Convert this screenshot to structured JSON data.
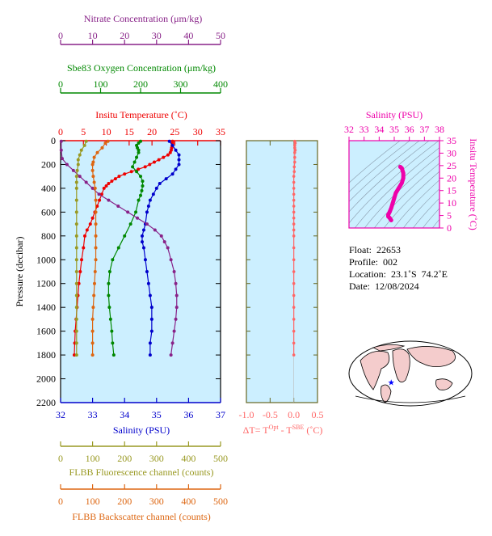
{
  "chart_data": [
    {
      "type": "line",
      "panel": "main-profile",
      "ylabel": "Pressure (decibar)",
      "y_ticks": [
        0,
        200,
        400,
        600,
        800,
        1000,
        1200,
        1400,
        1600,
        1800,
        2000,
        2200
      ],
      "ylim": [
        2200,
        0
      ],
      "y_inverted": true,
      "background_color": "#ccefff",
      "axes": {
        "nitrate": {
          "label": "Nitrate Concentration (μm/kg)",
          "ticks": [
            0,
            10,
            20,
            30,
            40,
            50
          ],
          "range": [
            0,
            50
          ],
          "color": "#882288"
        },
        "oxygen": {
          "label": "Sbe83 Oxygen Concentration (μm/kg)",
          "ticks": [
            0,
            100,
            200,
            300,
            400
          ],
          "range": [
            0,
            400
          ],
          "color": "#008800"
        },
        "temperature": {
          "label": "Insitu Temperature (˚C)",
          "ticks": [
            0,
            5,
            10,
            15,
            20,
            25,
            30,
            35
          ],
          "range": [
            0,
            35
          ],
          "color": "#ee0000"
        },
        "salinity": {
          "label": "Salinity (PSU)",
          "ticks": [
            32,
            33,
            34,
            35,
            36,
            37
          ],
          "range": [
            32,
            37
          ],
          "color": "#0000cc"
        },
        "fluorescence": {
          "label": "FLBB Fluorescence channel (counts)",
          "ticks": [
            0,
            100,
            200,
            300,
            400,
            500
          ],
          "range": [
            0,
            500
          ],
          "color": "#999922"
        },
        "backscatter": {
          "label": "FLBB Backscatter channel (counts)",
          "ticks": [
            0,
            100,
            200,
            300,
            400,
            500
          ],
          "range": [
            0,
            500
          ],
          "color": "#dd6611"
        }
      },
      "series": [
        {
          "key": "temperature",
          "color": "#ee0000",
          "points": [
            [
              24.5,
              5
            ],
            [
              24.5,
              20
            ],
            [
              24.4,
              40
            ],
            [
              24.3,
              60
            ],
            [
              24.2,
              80
            ],
            [
              24.0,
              100
            ],
            [
              23.5,
              120
            ],
            [
              22.5,
              140
            ],
            [
              21.5,
              160
            ],
            [
              20.5,
              180
            ],
            [
              19.5,
              200
            ],
            [
              18.5,
              220
            ],
            [
              17.0,
              240
            ],
            [
              15.5,
              260
            ],
            [
              14.0,
              280
            ],
            [
              12.8,
              300
            ],
            [
              12.0,
              320
            ],
            [
              11.2,
              340
            ],
            [
              10.5,
              360
            ],
            [
              10.0,
              380
            ],
            [
              9.5,
              400
            ],
            [
              9.0,
              450
            ],
            [
              8.5,
              500
            ],
            [
              8.0,
              550
            ],
            [
              7.5,
              600
            ],
            [
              7.0,
              650
            ],
            [
              6.5,
              700
            ],
            [
              5.8,
              750
            ],
            [
              5.3,
              800
            ],
            [
              5.0,
              900
            ],
            [
              4.6,
              1000
            ],
            [
              4.3,
              1100
            ],
            [
              4.0,
              1200
            ],
            [
              3.8,
              1300
            ],
            [
              3.6,
              1400
            ],
            [
              3.4,
              1500
            ],
            [
              3.2,
              1600
            ],
            [
              3.1,
              1700
            ],
            [
              3.0,
              1800
            ]
          ]
        },
        {
          "key": "salinity",
          "color": "#0000cc",
          "points": [
            [
              35.4,
              5
            ],
            [
              35.5,
              40
            ],
            [
              35.6,
              80
            ],
            [
              35.7,
              120
            ],
            [
              35.7,
              160
            ],
            [
              35.7,
              200
            ],
            [
              35.6,
              240
            ],
            [
              35.5,
              280
            ],
            [
              35.3,
              320
            ],
            [
              35.1,
              360
            ],
            [
              35.0,
              400
            ],
            [
              34.9,
              450
            ],
            [
              34.8,
              500
            ],
            [
              34.75,
              550
            ],
            [
              34.7,
              600
            ],
            [
              34.65,
              700
            ],
            [
              34.6,
              750
            ],
            [
              34.55,
              800
            ],
            [
              34.55,
              850
            ],
            [
              34.6,
              900
            ],
            [
              34.65,
              1000
            ],
            [
              34.7,
              1100
            ],
            [
              34.75,
              1200
            ],
            [
              34.8,
              1300
            ],
            [
              34.85,
              1400
            ],
            [
              34.85,
              1500
            ],
            [
              34.85,
              1600
            ],
            [
              34.8,
              1700
            ],
            [
              34.8,
              1800
            ]
          ]
        },
        {
          "key": "oxygen",
          "color": "#008800",
          "points": [
            [
              200,
              5
            ],
            [
              195,
              20
            ],
            [
              190,
              40
            ],
            [
              192,
              60
            ],
            [
              195,
              80
            ],
            [
              195,
              100
            ],
            [
              190,
              140
            ],
            [
              185,
              180
            ],
            [
              180,
              220
            ],
            [
              190,
              260
            ],
            [
              200,
              300
            ],
            [
              205,
              340
            ],
            [
              205,
              380
            ],
            [
              203,
              420
            ],
            [
              200,
              460
            ],
            [
              195,
              500
            ],
            [
              188,
              600
            ],
            [
              175,
              700
            ],
            [
              160,
              800
            ],
            [
              145,
              900
            ],
            [
              130,
              1000
            ],
            [
              123,
              1100
            ],
            [
              120,
              1200
            ],
            [
              120,
              1300
            ],
            [
              122,
              1400
            ],
            [
              125,
              1500
            ],
            [
              128,
              1600
            ],
            [
              130,
              1700
            ],
            [
              133,
              1800
            ]
          ]
        },
        {
          "key": "nitrate",
          "color": "#882288",
          "points": [
            [
              0.2,
              5
            ],
            [
              0.2,
              80
            ],
            [
              0.5,
              150
            ],
            [
              2,
              200
            ],
            [
              4,
              250
            ],
            [
              6,
              300
            ],
            [
              8,
              350
            ],
            [
              10,
              400
            ],
            [
              12,
              450
            ],
            [
              15,
              500
            ],
            [
              18,
              550
            ],
            [
              21,
              600
            ],
            [
              24,
              650
            ],
            [
              27,
              700
            ],
            [
              29.5,
              750
            ],
            [
              31.5,
              800
            ],
            [
              32.5,
              850
            ],
            [
              33.5,
              900
            ],
            [
              34.5,
              1000
            ],
            [
              35.5,
              1100
            ],
            [
              36,
              1200
            ],
            [
              36.3,
              1300
            ],
            [
              36.3,
              1400
            ],
            [
              36,
              1500
            ],
            [
              35.5,
              1600
            ],
            [
              35,
              1700
            ],
            [
              34.5,
              1800
            ]
          ]
        },
        {
          "key": "fluorescence",
          "color": "#999922",
          "points": [
            [
              80,
              5
            ],
            [
              75,
              40
            ],
            [
              65,
              80
            ],
            [
              60,
              120
            ],
            [
              55,
              160
            ],
            [
              55,
              200
            ],
            [
              52,
              250
            ],
            [
              50,
              300
            ],
            [
              50,
              350
            ],
            [
              50,
              400
            ],
            [
              50,
              500
            ],
            [
              50,
              600
            ],
            [
              50,
              700
            ],
            [
              50,
              800
            ],
            [
              50,
              900
            ],
            [
              50,
              1000
            ],
            [
              50,
              1100
            ],
            [
              50,
              1200
            ],
            [
              50,
              1300
            ],
            [
              50,
              1400
            ],
            [
              50,
              1500
            ],
            [
              50,
              1600
            ],
            [
              50,
              1700
            ],
            [
              50,
              1800
            ]
          ]
        },
        {
          "key": "backscatter",
          "color": "#dd6611",
          "points": [
            [
              148,
              5
            ],
            [
              140,
              20
            ],
            [
              130,
              60
            ],
            [
              115,
              100
            ],
            [
              105,
              140
            ],
            [
              102,
              180
            ],
            [
              100,
              200
            ],
            [
              100,
              250
            ],
            [
              102,
              300
            ],
            [
              105,
              350
            ],
            [
              108,
              400
            ],
            [
              110,
              500
            ],
            [
              110,
              600
            ],
            [
              110,
              700
            ],
            [
              110,
              800
            ],
            [
              110,
              900
            ],
            [
              110,
              1000
            ],
            [
              108,
              1100
            ],
            [
              106,
              1200
            ],
            [
              104,
              1300
            ],
            [
              102,
              1400
            ],
            [
              100,
              1500
            ],
            [
              100,
              1600
            ],
            [
              100,
              1700
            ],
            [
              100,
              1800
            ]
          ]
        }
      ]
    },
    {
      "type": "line",
      "panel": "delta-t",
      "xlabel_main": "ΔT= T",
      "xlabel_sup1": "Opt",
      "xlabel_mid": " - T",
      "xlabel_sup2": "SBE",
      "xlabel_unit": " (˚C)",
      "x_ticks": [
        "-1.0",
        "-0.5",
        "0.0",
        "0.5"
      ],
      "xlim": [
        -1.0,
        0.5
      ],
      "color": "#ff6666",
      "points": [
        [
          0.02,
          5
        ],
        [
          0.03,
          20
        ],
        [
          0.02,
          40
        ],
        [
          0.02,
          60
        ],
        [
          0.03,
          80
        ],
        [
          0.02,
          100
        ],
        [
          0.02,
          140
        ],
        [
          0.02,
          180
        ],
        [
          0.01,
          220
        ],
        [
          0.01,
          260
        ],
        [
          0.0,
          300
        ],
        [
          0.0,
          350
        ],
        [
          0.0,
          400
        ],
        [
          0.0,
          450
        ],
        [
          0.0,
          500
        ],
        [
          0.0,
          550
        ],
        [
          0.0,
          600
        ],
        [
          0.0,
          650
        ],
        [
          0.0,
          700
        ],
        [
          0.0,
          750
        ],
        [
          0.0,
          800
        ],
        [
          0.0,
          900
        ],
        [
          0.0,
          1000
        ],
        [
          0.0,
          1100
        ],
        [
          0.0,
          1200
        ],
        [
          0.0,
          1300
        ],
        [
          0.0,
          1400
        ],
        [
          0.0,
          1500
        ],
        [
          0.0,
          1600
        ],
        [
          0.0,
          1700
        ],
        [
          0.0,
          1800
        ]
      ]
    },
    {
      "type": "scatter",
      "panel": "ts-diagram",
      "xlabel": "Salinity (PSU)",
      "ylabel": "Insitu Temperature (˚C)",
      "x_ticks": [
        32,
        33,
        34,
        35,
        36,
        37,
        38
      ],
      "y_ticks": [
        0,
        5,
        10,
        15,
        20,
        25,
        30,
        35
      ],
      "xlim": [
        32,
        38
      ],
      "ylim": [
        0,
        35
      ],
      "color": "#ee00aa",
      "points": [
        [
          35.4,
          24.5
        ],
        [
          35.5,
          24
        ],
        [
          35.6,
          22
        ],
        [
          35.6,
          20
        ],
        [
          35.5,
          18
        ],
        [
          35.3,
          16
        ],
        [
          35.1,
          14
        ],
        [
          35.0,
          12
        ],
        [
          34.9,
          10
        ],
        [
          34.8,
          8
        ],
        [
          34.7,
          6.5
        ],
        [
          34.6,
          5.3
        ],
        [
          34.6,
          4.6
        ],
        [
          34.7,
          4
        ],
        [
          34.75,
          3.5
        ],
        [
          34.8,
          3.1
        ]
      ]
    }
  ],
  "float_info": {
    "float": "Float:  22653",
    "profile": "Profile:  002",
    "location": "Location:  23.1˚S  74.2˚E",
    "date": "Date:  12/08/2024"
  },
  "map": {
    "marker_lon": 74.2,
    "marker_lat": -23.1,
    "marker_color": "#0000ff",
    "ocean_color": "#ffffff",
    "land_color": "#f4cccc"
  }
}
